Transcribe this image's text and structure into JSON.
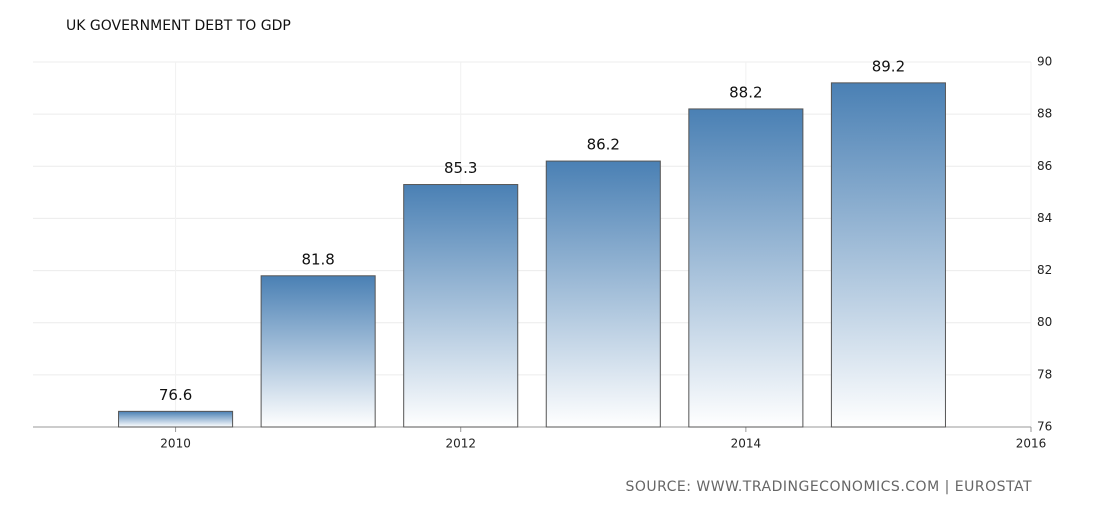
{
  "chart_data": {
    "type": "bar",
    "title": "UK GOVERNMENT DEBT TO GDP",
    "source": "SOURCE: WWW.TRADINGECONOMICS.COM | EUROSTAT",
    "x": [
      2010,
      2011,
      2012,
      2013,
      2014,
      2015
    ],
    "values": [
      76.6,
      81.8,
      85.3,
      86.2,
      88.2,
      89.2
    ],
    "color": "#4a80b4",
    "xlim": [
      2009,
      2016
    ],
    "xticks": [
      2010,
      2012,
      2014,
      2016
    ],
    "ylim": [
      76,
      90
    ],
    "yticks": [
      76,
      78,
      80,
      82,
      84,
      86,
      88,
      90
    ],
    "grid": true,
    "y_axis_side": "right"
  }
}
